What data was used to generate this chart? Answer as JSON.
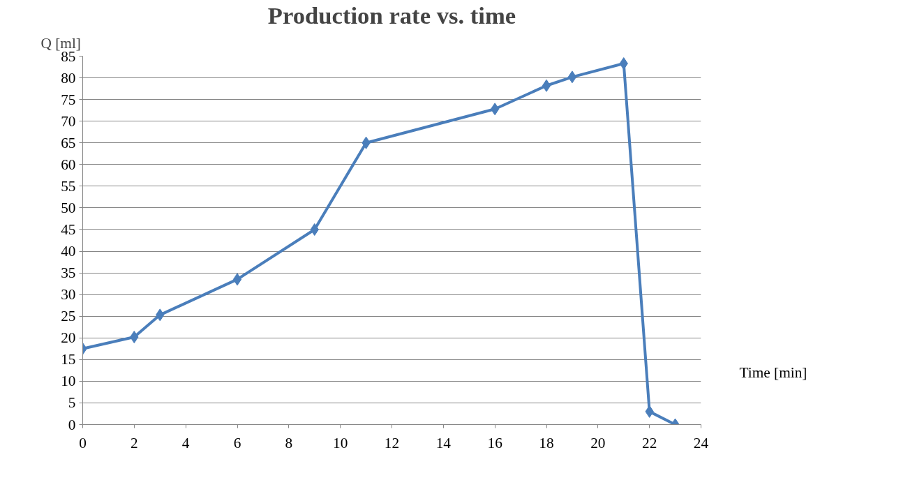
{
  "chart_data": {
    "type": "line",
    "title": "Production rate vs. time",
    "xlabel": "Time [min]",
    "ylabel": "Q [ml]",
    "x": [
      0,
      2,
      3,
      6,
      9,
      11,
      16,
      18,
      19,
      21,
      22,
      23
    ],
    "series": [
      {
        "color": "#4a7ebb",
        "values": [
          17.5,
          20.2,
          25.3,
          33.5,
          45,
          65,
          72.8,
          78.2,
          80.2,
          83.3,
          3,
          0
        ]
      }
    ],
    "xlim": [
      0,
      24
    ],
    "xticks": [
      0,
      2,
      4,
      6,
      8,
      10,
      12,
      14,
      16,
      18,
      20,
      22,
      24
    ],
    "ylim": [
      0,
      85
    ],
    "yticks": [
      0,
      5,
      10,
      15,
      20,
      25,
      30,
      35,
      40,
      45,
      50,
      55,
      60,
      65,
      70,
      75,
      80,
      85
    ],
    "grid": "y",
    "marker": "diamond",
    "line_style": "solid",
    "legend": false
  }
}
